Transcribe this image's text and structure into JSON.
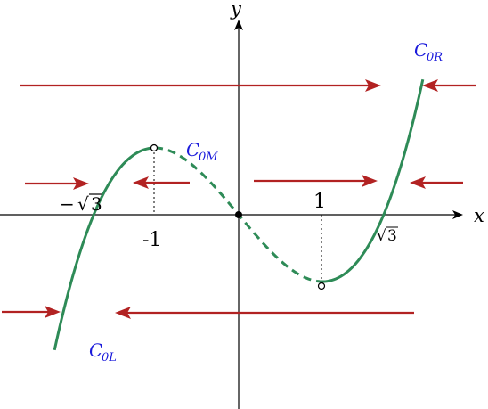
{
  "colors": {
    "curve": "#2e8b57",
    "arrow": "#b22222",
    "axis": "#000000",
    "curve_label": "#1a1adb"
  },
  "axes": {
    "x_label": "x",
    "y_label": "y"
  },
  "ticks": {
    "neg_sqrt3_sign": "−",
    "sqrt3_radicand": "3",
    "sqrt_symbol": "√",
    "neg_one": "-1",
    "one": "1"
  },
  "curve_labels": {
    "c0r_main": "C",
    "c0r_sub": "0R",
    "c0m_main": "C",
    "c0m_sub": "0M",
    "c0l_main": "C",
    "c0l_sub": "0L"
  },
  "curves": [
    {
      "name": "C0L",
      "style": "solid",
      "x_range": [
        -2.2,
        -1
      ]
    },
    {
      "name": "C0M",
      "style": "dashed",
      "x_range": [
        -1,
        1
      ]
    },
    {
      "name": "C0R",
      "style": "solid",
      "x_range": [
        1,
        2.2
      ]
    }
  ],
  "critical_points": [
    {
      "x": -1,
      "y": 2,
      "marker": "open-circle"
    },
    {
      "x": 1,
      "y": -2,
      "marker": "open-circle"
    },
    {
      "x": 0,
      "y": 0,
      "marker": "filled-circle"
    }
  ],
  "flow_arrows": [
    {
      "row": "top",
      "direction": "right",
      "y": 3.8
    },
    {
      "row": "top",
      "direction": "left",
      "y": 3.8
    },
    {
      "row": "middle",
      "direction": "right",
      "y": 1.0
    },
    {
      "row": "middle",
      "direction": "left",
      "y": 1.0
    },
    {
      "row": "middle",
      "direction": "right",
      "y": 1.0
    },
    {
      "row": "middle",
      "direction": "left",
      "y": 1.0
    },
    {
      "row": "bottom",
      "direction": "right",
      "y": -2.8
    },
    {
      "row": "bottom",
      "direction": "left",
      "y": -2.8
    }
  ]
}
